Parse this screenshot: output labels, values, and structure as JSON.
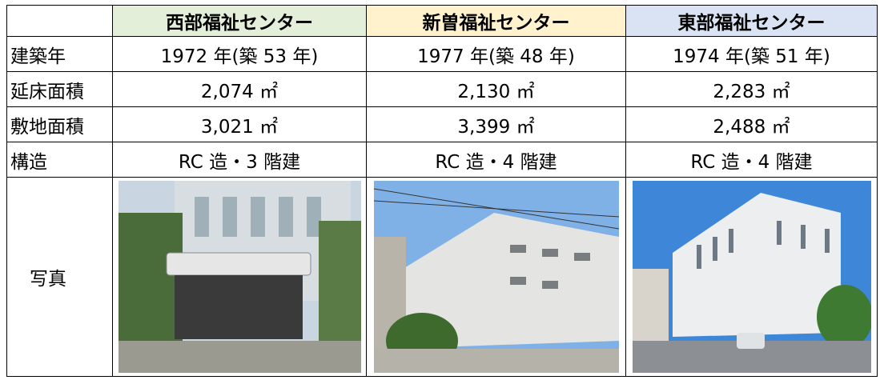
{
  "table": {
    "columns": [
      "西部福祉センター",
      "新曽福祉センター",
      "東部福祉センター"
    ],
    "rows": [
      {
        "label": "建築年",
        "cells": [
          "1972 年(築 53 年)",
          "1977 年(築 48 年)",
          "1974 年(築 51 年)"
        ]
      },
      {
        "label": "延床面積",
        "cells": [
          "2,074 ㎡",
          "2,130 ㎡",
          "2,283 ㎡"
        ]
      },
      {
        "label": "敷地面積",
        "cells": [
          "3,021 ㎡",
          "3,399 ㎡",
          "2,488 ㎡"
        ]
      },
      {
        "label": "構造",
        "cells": [
          "RC 造・3 階建",
          "RC 造・4 階建",
          "RC 造・4 階建"
        ]
      }
    ],
    "photo_label": "写真"
  }
}
